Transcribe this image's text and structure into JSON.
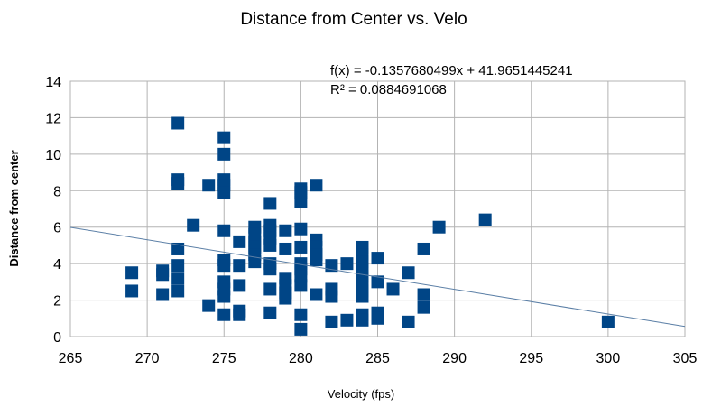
{
  "chart_data": {
    "type": "scatter",
    "title": "Distance from Center vs. Velo",
    "xlabel": "Velocity (fps)",
    "ylabel": "Distance from center",
    "xlim": [
      265,
      305
    ],
    "ylim": [
      0,
      14
    ],
    "x_ticks": [
      "265",
      "270",
      "275",
      "280",
      "285",
      "290",
      "295",
      "300",
      "305"
    ],
    "y_ticks": [
      "0",
      "2",
      "4",
      "6",
      "8",
      "10",
      "12",
      "14"
    ],
    "grid": true,
    "legend": "none",
    "marker_color": "#004586",
    "trendline_color": "#5b7fa6",
    "trendline": {
      "slope": -0.1357680499,
      "intercept": 41.9651445241,
      "equation": "f(x) = -0.1357680499x + 41.9651445241",
      "r_squared": "R² = 0.0884691068"
    },
    "points": [
      [
        269,
        3.5
      ],
      [
        269,
        2.5
      ],
      [
        271,
        3.6
      ],
      [
        271,
        3.4
      ],
      [
        271,
        2.3
      ],
      [
        272,
        11.7
      ],
      [
        272,
        8.6
      ],
      [
        272,
        8.4
      ],
      [
        272,
        4.8
      ],
      [
        272,
        3.9
      ],
      [
        272,
        3.2
      ],
      [
        272,
        2.5
      ],
      [
        273,
        6.1
      ],
      [
        274,
        8.3
      ],
      [
        274,
        1.7
      ],
      [
        275,
        10.9
      ],
      [
        275,
        10.0
      ],
      [
        275,
        8.6
      ],
      [
        275,
        8.3
      ],
      [
        275,
        7.9
      ],
      [
        275,
        5.8
      ],
      [
        275,
        4.2
      ],
      [
        275,
        3.9
      ],
      [
        275,
        3.0
      ],
      [
        275,
        2.6
      ],
      [
        275,
        2.2
      ],
      [
        275,
        1.2
      ],
      [
        276,
        5.2
      ],
      [
        276,
        3.9
      ],
      [
        276,
        2.8
      ],
      [
        276,
        1.4
      ],
      [
        276,
        1.2
      ],
      [
        277,
        6.0
      ],
      [
        277,
        5.6
      ],
      [
        277,
        5.2
      ],
      [
        277,
        4.9
      ],
      [
        277,
        4.5
      ],
      [
        277,
        4.1
      ],
      [
        278,
        7.3
      ],
      [
        278,
        6.1
      ],
      [
        278,
        5.8
      ],
      [
        278,
        5.4
      ],
      [
        278,
        5.0
      ],
      [
        278,
        4.0
      ],
      [
        278,
        3.7
      ],
      [
        278,
        2.6
      ],
      [
        278,
        1.3
      ],
      [
        279,
        5.8
      ],
      [
        279,
        4.8
      ],
      [
        279,
        3.2
      ],
      [
        279,
        2.8
      ],
      [
        279,
        2.4
      ],
      [
        279,
        2.1
      ],
      [
        280,
        8.1
      ],
      [
        280,
        7.9
      ],
      [
        280,
        7.4
      ],
      [
        280,
        5.9
      ],
      [
        280,
        4.9
      ],
      [
        280,
        4.0
      ],
      [
        280,
        3.7
      ],
      [
        280,
        3.3
      ],
      [
        280,
        2.8
      ],
      [
        280,
        1.2
      ],
      [
        280,
        0.4
      ],
      [
        281,
        8.3
      ],
      [
        281,
        5.3
      ],
      [
        281,
        4.9
      ],
      [
        281,
        4.5
      ],
      [
        281,
        4.2
      ],
      [
        281,
        2.3
      ],
      [
        282,
        3.9
      ],
      [
        282,
        2.6
      ],
      [
        282,
        2.2
      ],
      [
        282,
        0.8
      ],
      [
        283,
        4.0
      ],
      [
        283,
        0.9
      ],
      [
        284,
        4.9
      ],
      [
        284,
        4.5
      ],
      [
        284,
        4.1
      ],
      [
        284,
        3.7
      ],
      [
        284,
        3.3
      ],
      [
        284,
        2.9
      ],
      [
        284,
        2.5
      ],
      [
        284,
        2.2
      ],
      [
        284,
        1.2
      ],
      [
        284,
        0.9
      ],
      [
        285,
        4.3
      ],
      [
        285,
        3.0
      ],
      [
        285,
        1.3
      ],
      [
        285,
        1.0
      ],
      [
        286,
        2.6
      ],
      [
        287,
        3.5
      ],
      [
        287,
        0.8
      ],
      [
        288,
        4.8
      ],
      [
        288,
        2.3
      ],
      [
        288,
        1.6
      ],
      [
        289,
        6.0
      ],
      [
        292,
        6.4
      ],
      [
        300,
        0.8
      ]
    ]
  }
}
